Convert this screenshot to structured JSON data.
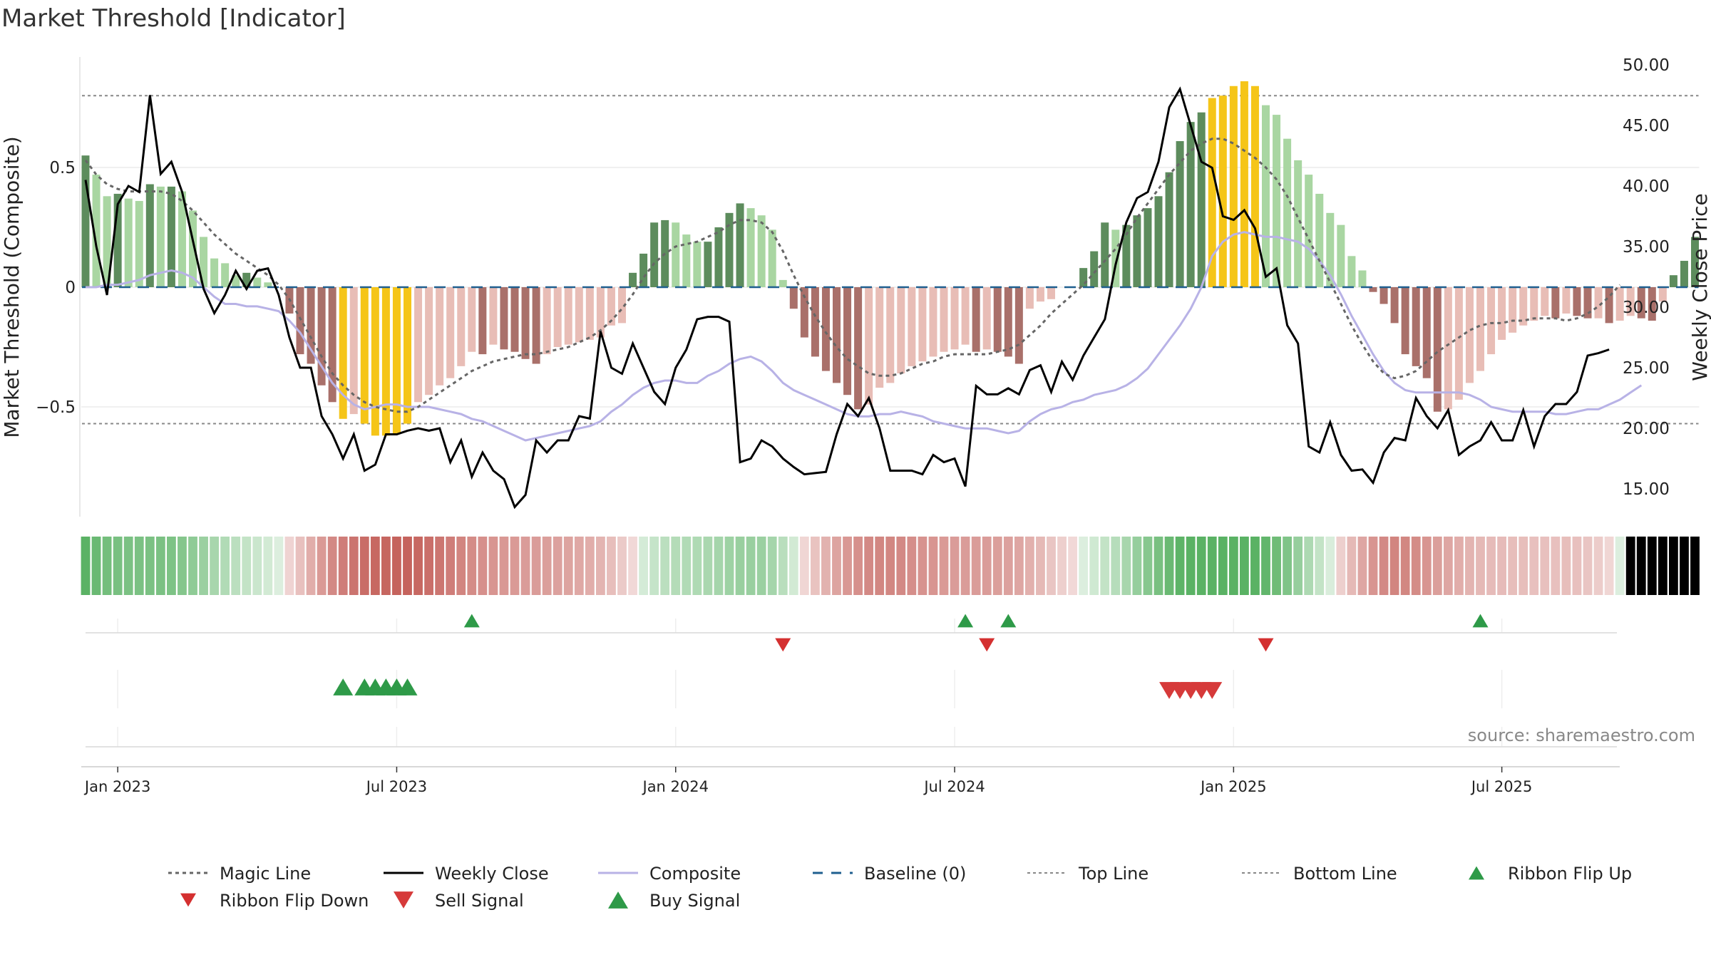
{
  "title": "Market Threshold [Indicator]",
  "source": "source: sharemaestro.com",
  "colors": {
    "strong_green": "#5d8c5d",
    "light_green": "#a9d6a2",
    "strong_red": "#a9706a",
    "light_red": "#e8bdb6",
    "gold": "#f5c518",
    "weekly_close": "#000000",
    "composite": "#b8b2e6",
    "magic_line": "#666666",
    "baseline": "#1f5f8f",
    "buy": "#2e9a48",
    "sell": "#d63a3a",
    "flip_down": "#d43030"
  },
  "chart_data": {
    "type": "bar",
    "title": "Market Threshold [Indicator]",
    "ylabel_left": "Market Threshold (Composite)",
    "ylabel_right": "Weekly Close Price",
    "x_tick_labels": [
      "Jan 2023",
      "Jul 2023",
      "Jan 2024",
      "Jul 2024",
      "Jan 2025",
      "Jul 2025"
    ],
    "x_tick_weeks": [
      3,
      29,
      55,
      81,
      107,
      132
    ],
    "left_ticks": [
      {
        "value": 0.5,
        "label": "0.5"
      },
      {
        "value": 0,
        "label": "0"
      },
      {
        "value": -0.5,
        "label": "−0.5"
      }
    ],
    "right_ticks": [
      {
        "value": 50,
        "label": "50.00"
      },
      {
        "value": 45,
        "label": "45.00"
      },
      {
        "value": 40,
        "label": "40.00"
      },
      {
        "value": 35,
        "label": "35.00"
      },
      {
        "value": 30,
        "label": "30.00"
      },
      {
        "value": 25,
        "label": "25.00"
      },
      {
        "value": 20,
        "label": "20.00"
      },
      {
        "value": 15,
        "label": "15.00"
      }
    ],
    "left_ylim": [
      -0.95,
      0.95
    ],
    "right_ylim": [
      12.2,
      51.8
    ],
    "top_line": 0.8,
    "bottom_line": -0.57,
    "baseline": 0,
    "grid": true,
    "legend_position": "bottom",
    "start_date": "2022-12-19",
    "composite_bars": [
      0.55,
      0.47,
      0.38,
      0.39,
      0.37,
      0.36,
      0.43,
      0.42,
      0.42,
      0.4,
      0.32,
      0.21,
      0.12,
      0.1,
      0.05,
      0.06,
      0.04,
      0.02,
      0.0,
      -0.11,
      -0.28,
      -0.32,
      -0.41,
      -0.48,
      -0.55,
      -0.53,
      -0.57,
      -0.62,
      -0.62,
      -0.61,
      -0.57,
      -0.48,
      -0.45,
      -0.41,
      -0.38,
      -0.33,
      -0.27,
      -0.28,
      -0.24,
      -0.26,
      -0.27,
      -0.3,
      -0.32,
      -0.28,
      -0.25,
      -0.24,
      -0.23,
      -0.22,
      -0.21,
      -0.16,
      -0.15,
      0.06,
      0.14,
      0.27,
      0.28,
      0.27,
      0.22,
      0.19,
      0.19,
      0.25,
      0.31,
      0.35,
      0.33,
      0.3,
      0.24,
      0.03,
      -0.09,
      -0.21,
      -0.29,
      -0.35,
      -0.4,
      -0.45,
      -0.51,
      -0.49,
      -0.42,
      -0.4,
      -0.36,
      -0.33,
      -0.31,
      -0.29,
      -0.27,
      -0.26,
      -0.24,
      -0.27,
      -0.26,
      -0.27,
      -0.29,
      -0.32,
      -0.09,
      -0.06,
      -0.05,
      0.0,
      0.0,
      0.08,
      0.15,
      0.27,
      0.24,
      0.26,
      0.3,
      0.33,
      0.38,
      0.48,
      0.61,
      0.69,
      0.73,
      0.79,
      0.8,
      0.84,
      0.86,
      0.84,
      0.76,
      0.72,
      0.62,
      0.53,
      0.47,
      0.39,
      0.31,
      0.26,
      0.13,
      0.07,
      -0.02,
      -0.07,
      -0.15,
      -0.28,
      -0.33,
      -0.38,
      -0.52,
      -0.51,
      -0.47,
      -0.4,
      -0.35,
      -0.28,
      -0.22,
      -0.19,
      -0.16,
      -0.14,
      -0.12,
      -0.13,
      -0.11,
      -0.12,
      -0.13,
      -0.13,
      -0.15,
      -0.14,
      -0.12,
      -0.13,
      -0.14,
      -0.06,
      0.05,
      0.11,
      0.21
    ],
    "weekly_close": [
      40.5,
      35.0,
      31.0,
      38.5,
      40.0,
      39.5,
      47.5,
      41.0,
      42.0,
      39.5,
      35.5,
      31.5,
      29.5,
      31.0,
      33.0,
      31.5,
      33.0,
      33.2,
      31.0,
      27.5,
      25.0,
      25.0,
      21.0,
      19.5,
      17.5,
      19.5,
      16.5,
      17.0,
      19.5,
      19.5,
      19.8,
      20.0,
      19.8,
      20.0,
      17.2,
      19.0,
      16.0,
      18.0,
      16.5,
      15.8,
      13.5,
      14.5,
      19.0,
      18.0,
      19.0,
      19.0,
      21.0,
      20.8,
      28.0,
      25.0,
      24.5,
      27.0,
      25.0,
      23.0,
      22.0,
      25.0,
      26.5,
      29.0,
      29.2,
      29.2,
      28.8,
      17.2,
      17.5,
      19.0,
      18.5,
      17.5,
      16.8,
      16.2,
      16.3,
      16.4,
      19.5,
      22.0,
      21.0,
      22.5,
      20.0,
      16.5,
      16.5,
      16.5,
      16.2,
      17.8,
      17.2,
      17.5,
      15.2,
      23.5,
      22.8,
      22.8,
      23.3,
      22.8,
      24.8,
      25.2,
      23.0,
      25.5,
      24.0,
      26.0,
      27.5,
      29.0,
      33.5,
      37.0,
      39.0,
      39.5,
      42.0,
      46.5,
      48.0,
      45.0,
      42.0,
      41.5,
      37.5,
      37.2,
      38.0,
      36.5,
      32.5,
      33.2,
      28.5,
      27.0,
      18.5,
      18.0,
      20.5,
      17.8,
      16.5,
      16.6,
      15.5,
      18.0,
      19.2,
      19.0,
      22.5,
      21.0,
      20.0,
      21.5,
      17.8,
      18.5,
      19.0,
      20.5,
      19.0,
      19.0,
      21.5,
      18.5,
      21.0,
      22.0,
      22.0,
      23.0,
      26.0,
      26.2,
      26.5
    ],
    "composite_line": [
      0.0,
      0.0,
      0.01,
      0.01,
      0.02,
      0.03,
      0.05,
      0.06,
      0.07,
      0.06,
      0.04,
      0.0,
      -0.04,
      -0.07,
      -0.07,
      -0.08,
      -0.08,
      -0.09,
      -0.1,
      -0.14,
      -0.19,
      -0.26,
      -0.33,
      -0.4,
      -0.45,
      -0.49,
      -0.51,
      -0.5,
      -0.49,
      -0.49,
      -0.5,
      -0.5,
      -0.5,
      -0.51,
      -0.52,
      -0.53,
      -0.55,
      -0.56,
      -0.58,
      -0.6,
      -0.62,
      -0.64,
      -0.63,
      -0.62,
      -0.61,
      -0.6,
      -0.59,
      -0.58,
      -0.56,
      -0.52,
      -0.49,
      -0.45,
      -0.42,
      -0.4,
      -0.39,
      -0.39,
      -0.4,
      -0.4,
      -0.37,
      -0.35,
      -0.32,
      -0.3,
      -0.29,
      -0.31,
      -0.35,
      -0.4,
      -0.43,
      -0.45,
      -0.47,
      -0.49,
      -0.51,
      -0.53,
      -0.54,
      -0.54,
      -0.53,
      -0.53,
      -0.52,
      -0.53,
      -0.54,
      -0.56,
      -0.57,
      -0.58,
      -0.59,
      -0.59,
      -0.59,
      -0.6,
      -0.61,
      -0.6,
      -0.56,
      -0.53,
      -0.51,
      -0.5,
      -0.48,
      -0.47,
      -0.45,
      -0.44,
      -0.43,
      -0.41,
      -0.38,
      -0.34,
      -0.28,
      -0.22,
      -0.16,
      -0.09,
      0.0,
      0.13,
      0.19,
      0.22,
      0.23,
      0.22,
      0.21,
      0.21,
      0.2,
      0.19,
      0.16,
      0.11,
      0.05,
      -0.03,
      -0.12,
      -0.2,
      -0.28,
      -0.35,
      -0.4,
      -0.43,
      -0.44,
      -0.44,
      -0.44,
      -0.44,
      -0.44,
      -0.45,
      -0.47,
      -0.5,
      -0.51,
      -0.52,
      -0.52,
      -0.52,
      -0.52,
      -0.53,
      -0.53,
      -0.52,
      -0.51,
      -0.51,
      -0.49,
      -0.47,
      -0.44,
      -0.41
    ],
    "magic_line": [
      0.53,
      0.47,
      0.43,
      0.41,
      0.4,
      0.4,
      0.4,
      0.4,
      0.39,
      0.36,
      0.32,
      0.27,
      0.22,
      0.18,
      0.14,
      0.11,
      0.08,
      0.05,
      0.01,
      -0.05,
      -0.13,
      -0.21,
      -0.29,
      -0.36,
      -0.41,
      -0.45,
      -0.48,
      -0.5,
      -0.51,
      -0.52,
      -0.52,
      -0.5,
      -0.47,
      -0.44,
      -0.41,
      -0.38,
      -0.35,
      -0.33,
      -0.31,
      -0.3,
      -0.29,
      -0.28,
      -0.28,
      -0.27,
      -0.26,
      -0.25,
      -0.23,
      -0.21,
      -0.18,
      -0.14,
      -0.09,
      -0.03,
      0.04,
      0.1,
      0.14,
      0.17,
      0.18,
      0.19,
      0.21,
      0.23,
      0.26,
      0.28,
      0.28,
      0.27,
      0.23,
      0.15,
      0.05,
      -0.04,
      -0.12,
      -0.19,
      -0.25,
      -0.3,
      -0.33,
      -0.36,
      -0.37,
      -0.37,
      -0.36,
      -0.34,
      -0.32,
      -0.31,
      -0.29,
      -0.28,
      -0.28,
      -0.28,
      -0.28,
      -0.27,
      -0.26,
      -0.24,
      -0.2,
      -0.16,
      -0.11,
      -0.07,
      -0.03,
      0.01,
      0.06,
      0.11,
      0.16,
      0.22,
      0.29,
      0.35,
      0.41,
      0.47,
      0.52,
      0.57,
      0.6,
      0.62,
      0.62,
      0.6,
      0.57,
      0.54,
      0.5,
      0.45,
      0.38,
      0.29,
      0.2,
      0.11,
      0.02,
      -0.07,
      -0.16,
      -0.24,
      -0.31,
      -0.36,
      -0.38,
      -0.37,
      -0.35,
      -0.31,
      -0.27,
      -0.24,
      -0.21,
      -0.18,
      -0.16,
      -0.15,
      -0.15,
      -0.14,
      -0.14,
      -0.13,
      -0.13,
      -0.13,
      -0.14,
      -0.13,
      -0.11,
      -0.08,
      -0.04,
      0.01
    ],
    "ribbon_flip_up_weeks": [
      36,
      82,
      86,
      130
    ],
    "ribbon_flip_down_weeks": [
      65,
      84,
      110
    ],
    "buy_signal_weeks": [
      24,
      26,
      27,
      28,
      29,
      30
    ],
    "sell_signal_weeks": [
      101,
      102,
      103,
      104,
      105
    ]
  },
  "legend": [
    {
      "label": "Magic Line",
      "icon": "dotted-line"
    },
    {
      "label": "Weekly Close",
      "icon": "solid-line"
    },
    {
      "label": "Composite",
      "icon": "light-purple-line"
    },
    {
      "label": "Baseline (0)",
      "icon": "dashed-line"
    },
    {
      "label": "Top Line",
      "icon": "grey-dotted-line"
    },
    {
      "label": "Bottom Line",
      "icon": "grey-dotted-line"
    },
    {
      "label": "Ribbon Flip Up",
      "icon": "green-triangle-up"
    },
    {
      "label": "Ribbon Flip Down",
      "icon": "red-triangle-down"
    },
    {
      "label": "Sell Signal",
      "icon": "red-triangle-down"
    },
    {
      "label": "Buy Signal",
      "icon": "green-triangle-up"
    }
  ]
}
